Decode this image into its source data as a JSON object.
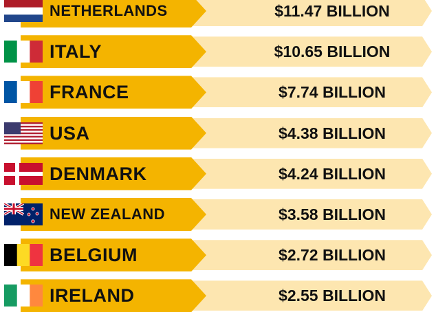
{
  "colors": {
    "name_band": "#f4b400",
    "value_band": "#fde6b0",
    "text": "#111111"
  },
  "chart_data": {
    "type": "bar",
    "title": "",
    "categories": [
      "NETHERLANDS",
      "ITALY",
      "FRANCE",
      "USA",
      "DENMARK",
      "NEW ZEALAND",
      "BELGIUM",
      "IRELAND"
    ],
    "values": [
      11.47,
      10.65,
      7.74,
      4.38,
      4.24,
      3.58,
      2.72,
      2.55
    ],
    "unit": "BILLION",
    "value_labels": [
      "$11.47 BILLION",
      "$10.65 BILLION",
      "$7.74 BILLION",
      "$4.38 BILLION",
      "$4.24 BILLION",
      "$3.58 BILLION",
      "$2.72 BILLION",
      "$2.55 BILLION"
    ],
    "flags": [
      "netherlands-flag-icon",
      "italy-flag-icon",
      "france-flag-icon",
      "usa-flag-icon",
      "denmark-flag-icon",
      "new-zealand-flag-icon",
      "belgium-flag-icon",
      "ireland-flag-icon"
    ]
  }
}
